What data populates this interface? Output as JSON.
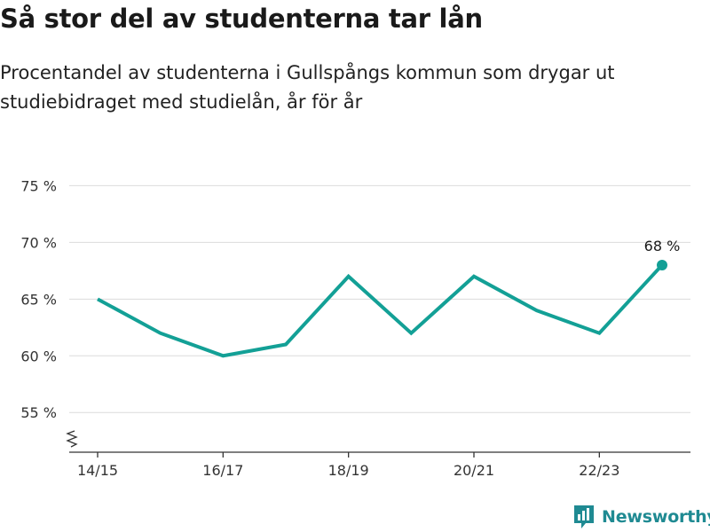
{
  "title": "Så stor del av studenterna tar lån",
  "subtitle": "Procentandel av studenterna i Gullspångs kommun som drygar ut studiebidraget med studielån, år för år",
  "brand": {
    "name": "Newsworthy",
    "icon": "bar-chart-logo-icon",
    "color": "#1f8a92"
  },
  "chart_data": {
    "type": "line",
    "categories": [
      "14/15",
      "15/16",
      "16/17",
      "17/18",
      "18/19",
      "19/20",
      "20/21",
      "21/22",
      "22/23",
      "23/24"
    ],
    "values": [
      65,
      62,
      60,
      61,
      67,
      62,
      67,
      64,
      62,
      68
    ],
    "x_tick_labels": [
      "14/15",
      "16/17",
      "18/19",
      "20/21",
      "22/23"
    ],
    "y_ticks": [
      55,
      60,
      65,
      70,
      75
    ],
    "y_tick_labels": [
      "55 %",
      "60 %",
      "65 %",
      "70 %",
      "75 %"
    ],
    "ylim": [
      51.5,
      77.3
    ],
    "y_axis_break": true,
    "grid": true,
    "line_color": "#13a096",
    "last_point_label": "68 %",
    "xlabel": "",
    "ylabel": ""
  }
}
